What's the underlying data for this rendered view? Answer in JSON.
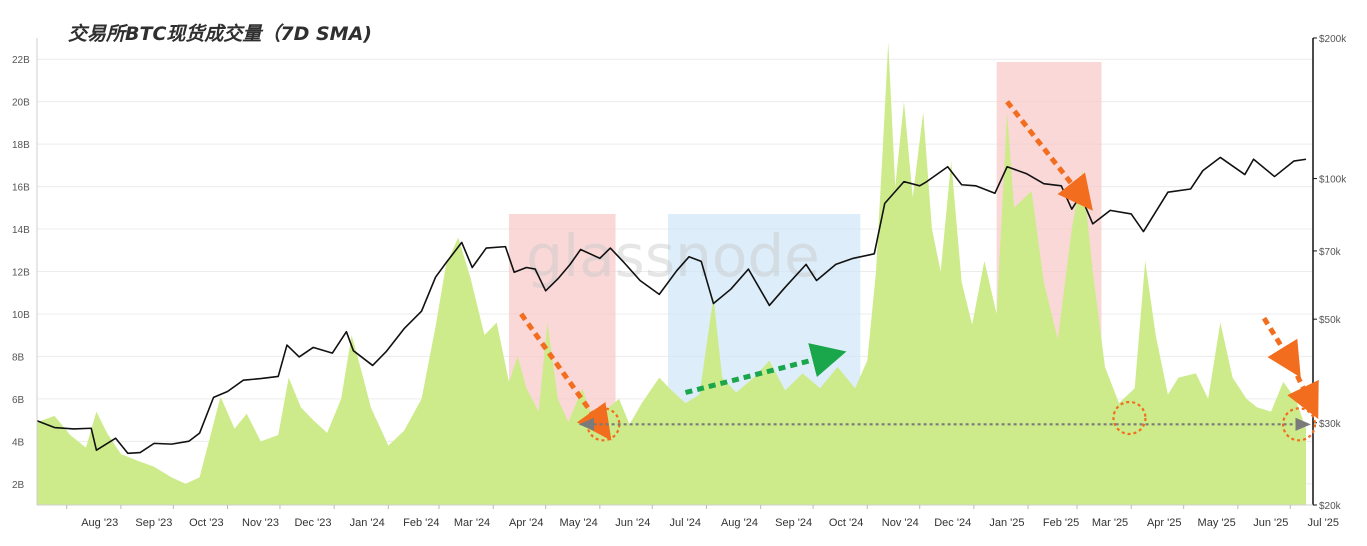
{
  "chart_data": {
    "type": "area",
    "title": "交易所BTC现货成交量（7D SMA)",
    "watermark": "glassnode",
    "x_categories": [
      "Aug '23",
      "Sep '23",
      "Oct '23",
      "Nov '23",
      "Dec '23",
      "Jan '24",
      "Feb '24",
      "Mar '24",
      "Apr '24",
      "May '24",
      "Jun '24",
      "Jul '24",
      "Aug '24",
      "Sep '24",
      "Oct '24",
      "Nov '24",
      "Dec '24",
      "Jan '25",
      "Feb '25",
      "Mar '25",
      "Apr '25",
      "May '25",
      "Jun '25",
      "Jul '25"
    ],
    "left_axis": {
      "ticks": [
        "2B",
        "4B",
        "6B",
        "8B",
        "10B",
        "12B",
        "14B",
        "16B",
        "18B",
        "20B",
        "22B"
      ],
      "range": [
        1,
        23
      ]
    },
    "right_axis": {
      "scale": "log",
      "ticks": [
        "$20k",
        "$30k",
        "$50k",
        "$70k",
        "$100k",
        "$200k"
      ],
      "range": [
        20000,
        200000
      ]
    },
    "grid": true,
    "series": [
      {
        "kind": "area",
        "axis": "left",
        "color": "#cdeb8b",
        "points": [
          [
            "2023-07-15",
            4.9
          ],
          [
            "2023-07-25",
            5.2
          ],
          [
            "2023-08-03",
            4.3
          ],
          [
            "2023-08-12",
            3.7
          ],
          [
            "2023-08-18",
            5.4
          ],
          [
            "2023-08-24",
            4.4
          ],
          [
            "2023-09-01",
            3.4
          ],
          [
            "2023-09-10",
            3.1
          ],
          [
            "2023-09-20",
            2.8
          ],
          [
            "2023-09-30",
            2.3
          ],
          [
            "2023-10-08",
            2.0
          ],
          [
            "2023-10-16",
            2.3
          ],
          [
            "2023-10-22",
            4.2
          ],
          [
            "2023-10-28",
            6.1
          ],
          [
            "2023-11-05",
            4.6
          ],
          [
            "2023-11-12",
            5.3
          ],
          [
            "2023-11-20",
            4.0
          ],
          [
            "2023-11-30",
            4.3
          ],
          [
            "2023-12-06",
            7.0
          ],
          [
            "2023-12-13",
            5.6
          ],
          [
            "2023-12-20",
            5.0
          ],
          [
            "2023-12-28",
            4.4
          ],
          [
            "2024-01-05",
            6.0
          ],
          [
            "2024-01-11",
            9.0
          ],
          [
            "2024-01-16",
            7.5
          ],
          [
            "2024-01-22",
            5.6
          ],
          [
            "2024-02-01",
            3.8
          ],
          [
            "2024-02-10",
            4.5
          ],
          [
            "2024-02-20",
            6.0
          ],
          [
            "2024-02-28",
            9.4
          ],
          [
            "2024-03-05",
            12.3
          ],
          [
            "2024-03-12",
            13.6
          ],
          [
            "2024-03-19",
            11.7
          ],
          [
            "2024-03-27",
            9.0
          ],
          [
            "2024-04-03",
            9.6
          ],
          [
            "2024-04-10",
            6.8
          ],
          [
            "2024-04-15",
            8.0
          ],
          [
            "2024-04-20",
            6.5
          ],
          [
            "2024-04-27",
            5.4
          ],
          [
            "2024-05-02",
            9.6
          ],
          [
            "2024-05-08",
            6.0
          ],
          [
            "2024-05-14",
            4.9
          ],
          [
            "2024-05-22",
            6.5
          ],
          [
            "2024-05-29",
            4.8
          ],
          [
            "2024-06-06",
            5.6
          ],
          [
            "2024-06-12",
            6.0
          ],
          [
            "2024-06-18",
            4.8
          ],
          [
            "2024-06-25",
            5.8
          ],
          [
            "2024-07-05",
            7.0
          ],
          [
            "2024-07-12",
            6.4
          ],
          [
            "2024-07-20",
            5.8
          ],
          [
            "2024-07-28",
            6.2
          ],
          [
            "2024-08-05",
            10.8
          ],
          [
            "2024-08-10",
            7.0
          ],
          [
            "2024-08-18",
            6.3
          ],
          [
            "2024-08-28",
            7.0
          ],
          [
            "2024-09-06",
            7.8
          ],
          [
            "2024-09-15",
            6.4
          ],
          [
            "2024-09-25",
            7.2
          ],
          [
            "2024-10-05",
            6.5
          ],
          [
            "2024-10-15",
            7.5
          ],
          [
            "2024-10-25",
            6.5
          ],
          [
            "2024-11-01",
            7.8
          ],
          [
            "2024-11-06",
            12.0
          ],
          [
            "2024-11-10",
            18.0
          ],
          [
            "2024-11-13",
            22.8
          ],
          [
            "2024-11-17",
            16.0
          ],
          [
            "2024-11-22",
            20.0
          ],
          [
            "2024-11-27",
            15.5
          ],
          [
            "2024-12-03",
            19.5
          ],
          [
            "2024-12-08",
            14.0
          ],
          [
            "2024-12-13",
            12.0
          ],
          [
            "2024-12-19",
            17.2
          ],
          [
            "2024-12-25",
            11.5
          ],
          [
            "2024-12-31",
            9.5
          ],
          [
            "2025-01-07",
            12.5
          ],
          [
            "2025-01-14",
            10.0
          ],
          [
            "2025-01-20",
            19.5
          ],
          [
            "2025-01-24",
            15.0
          ],
          [
            "2025-02-03",
            15.8
          ],
          [
            "2025-02-10",
            11.5
          ],
          [
            "2025-02-18",
            8.8
          ],
          [
            "2025-02-26",
            14.0
          ],
          [
            "2025-03-04",
            16.8
          ],
          [
            "2025-03-10",
            12.0
          ],
          [
            "2025-03-17",
            7.5
          ],
          [
            "2025-03-25",
            5.8
          ],
          [
            "2025-04-03",
            6.5
          ],
          [
            "2025-04-09",
            12.5
          ],
          [
            "2025-04-15",
            9.0
          ],
          [
            "2025-04-22",
            6.2
          ],
          [
            "2025-04-28",
            7.0
          ],
          [
            "2025-05-08",
            7.2
          ],
          [
            "2025-05-15",
            6.0
          ],
          [
            "2025-05-22",
            9.6
          ],
          [
            "2025-05-29",
            7.0
          ],
          [
            "2025-06-06",
            6.0
          ],
          [
            "2025-06-12",
            5.6
          ],
          [
            "2025-06-20",
            5.4
          ],
          [
            "2025-06-27",
            6.8
          ],
          [
            "2025-07-04",
            6.0
          ],
          [
            "2025-07-10",
            4.6
          ]
        ]
      },
      {
        "kind": "line",
        "axis": "right",
        "color": "#111111",
        "points": [
          [
            "2023-07-15",
            30300
          ],
          [
            "2023-07-25",
            29300
          ],
          [
            "2023-08-05",
            29100
          ],
          [
            "2023-08-15",
            29200
          ],
          [
            "2023-08-18",
            26200
          ],
          [
            "2023-08-29",
            27800
          ],
          [
            "2023-09-05",
            25800
          ],
          [
            "2023-09-12",
            25900
          ],
          [
            "2023-09-20",
            27100
          ],
          [
            "2023-09-30",
            27000
          ],
          [
            "2023-10-10",
            27400
          ],
          [
            "2023-10-16",
            28500
          ],
          [
            "2023-10-24",
            34000
          ],
          [
            "2023-11-01",
            35000
          ],
          [
            "2023-11-10",
            37000
          ],
          [
            "2023-11-20",
            37300
          ],
          [
            "2023-11-30",
            37700
          ],
          [
            "2023-12-05",
            44000
          ],
          [
            "2023-12-12",
            41500
          ],
          [
            "2023-12-20",
            43500
          ],
          [
            "2023-12-31",
            42300
          ],
          [
            "2024-01-08",
            47000
          ],
          [
            "2024-01-12",
            42800
          ],
          [
            "2024-01-23",
            39800
          ],
          [
            "2024-01-31",
            42700
          ],
          [
            "2024-02-10",
            47700
          ],
          [
            "2024-02-20",
            52000
          ],
          [
            "2024-02-28",
            61500
          ],
          [
            "2024-03-05",
            66000
          ],
          [
            "2024-03-14",
            73000
          ],
          [
            "2024-03-20",
            64500
          ],
          [
            "2024-03-28",
            71000
          ],
          [
            "2024-04-08",
            71500
          ],
          [
            "2024-04-13",
            63000
          ],
          [
            "2024-04-20",
            64500
          ],
          [
            "2024-04-25",
            64000
          ],
          [
            "2024-05-01",
            57500
          ],
          [
            "2024-05-08",
            61000
          ],
          [
            "2024-05-15",
            65500
          ],
          [
            "2024-05-21",
            70500
          ],
          [
            "2024-06-01",
            67500
          ],
          [
            "2024-06-07",
            71000
          ],
          [
            "2024-06-15",
            66000
          ],
          [
            "2024-06-24",
            60500
          ],
          [
            "2024-07-05",
            56500
          ],
          [
            "2024-07-15",
            63500
          ],
          [
            "2024-07-22",
            68000
          ],
          [
            "2024-07-29",
            66500
          ],
          [
            "2024-08-05",
            54000
          ],
          [
            "2024-08-15",
            58000
          ],
          [
            "2024-08-25",
            64000
          ],
          [
            "2024-09-06",
            53500
          ],
          [
            "2024-09-15",
            58500
          ],
          [
            "2024-09-27",
            65500
          ],
          [
            "2024-10-03",
            60500
          ],
          [
            "2024-10-14",
            65500
          ],
          [
            "2024-10-24",
            67500
          ],
          [
            "2024-11-05",
            69000
          ],
          [
            "2024-11-11",
            88500
          ],
          [
            "2024-11-22",
            98500
          ],
          [
            "2024-12-01",
            96500
          ],
          [
            "2024-12-05",
            98500
          ],
          [
            "2024-12-17",
            106000
          ],
          [
            "2024-12-25",
            97000
          ],
          [
            "2025-01-02",
            96500
          ],
          [
            "2025-01-13",
            93000
          ],
          [
            "2025-01-20",
            106000
          ],
          [
            "2025-01-31",
            102500
          ],
          [
            "2025-02-10",
            97500
          ],
          [
            "2025-02-20",
            96500
          ],
          [
            "2025-02-26",
            86000
          ],
          [
            "2025-03-03",
            92000
          ],
          [
            "2025-03-10",
            80000
          ],
          [
            "2025-03-20",
            85500
          ],
          [
            "2025-04-01",
            84000
          ],
          [
            "2025-04-08",
            77000
          ],
          [
            "2025-04-22",
            93500
          ],
          [
            "2025-05-05",
            95000
          ],
          [
            "2025-05-12",
            104000
          ],
          [
            "2025-05-22",
            111000
          ],
          [
            "2025-06-05",
            102000
          ],
          [
            "2025-06-10",
            110000
          ],
          [
            "2025-06-22",
            101000
          ],
          [
            "2025-07-03",
            109000
          ],
          [
            "2025-07-10",
            110000
          ]
        ]
      }
    ],
    "shaded_regions": [
      {
        "from": "2024-04-10",
        "to": "2024-06-10",
        "color": "#f8c8c8"
      },
      {
        "from": "2024-07-10",
        "to": "2024-10-28",
        "color": "#cfe6f7"
      },
      {
        "from": "2025-01-14",
        "to": "2025-03-15",
        "color": "#f8c8c8"
      }
    ],
    "annotations": [
      {
        "type": "dashed-arrow",
        "color": "#f26d1d",
        "from": [
          "2024-04-17",
          10.0
        ],
        "to": [
          "2024-06-01",
          4.8
        ]
      },
      {
        "type": "dashed-arrow",
        "color": "#1aa64a",
        "from": [
          "2024-07-20",
          6.3
        ],
        "to": [
          "2024-10-09",
          8.0
        ]
      },
      {
        "type": "dashed-arrow",
        "color": "#f26d1d",
        "from": [
          "2025-01-20",
          20.0
        ],
        "to": [
          "2025-03-03",
          15.6
        ]
      },
      {
        "type": "dashed-arrow",
        "color": "#f26d1d",
        "from": [
          "2025-06-16",
          9.8
        ],
        "to": [
          "2025-07-01",
          7.8
        ]
      },
      {
        "type": "dashed-arrow",
        "color": "#f26d1d",
        "from": [
          "2025-07-02",
          7.6
        ],
        "to": [
          "2025-07-12",
          5.9
        ]
      },
      {
        "type": "dotted-circle",
        "color": "#f26d1d",
        "at": [
          "2024-06-03",
          4.8
        ]
      },
      {
        "type": "dotted-circle",
        "color": "#f26d1d",
        "at": [
          "2025-03-31",
          5.1
        ]
      },
      {
        "type": "dotted-circle",
        "color": "#f26d1d",
        "at": [
          "2025-07-06",
          4.8
        ]
      },
      {
        "type": "dotted-double-arrow",
        "color": "#7a7a7a",
        "from": [
          "2024-05-25",
          4.8
        ],
        "to": [
          "2025-07-09",
          4.8
        ]
      }
    ]
  }
}
